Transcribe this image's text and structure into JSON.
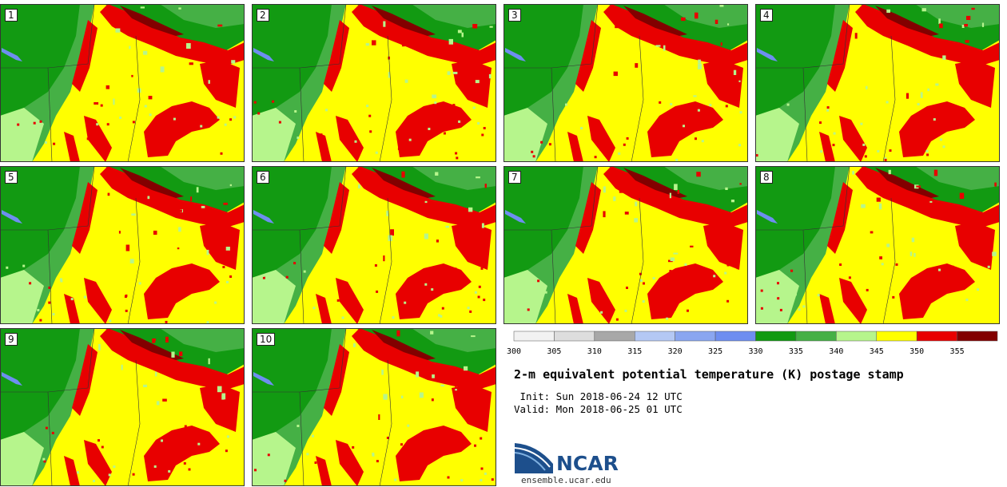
{
  "chart_data": {
    "type": "heatmap",
    "title": "2-m equivalent potential temperature (K) postage stamp",
    "init_line": " Init: Sun 2018-06-24 12 UTC",
    "valid_line": "Valid: Mon 2018-06-25 01 UTC",
    "members": [
      "1",
      "2",
      "3",
      "4",
      "5",
      "6",
      "7",
      "8",
      "9",
      "10"
    ],
    "colorbar": {
      "ticks": [
        "300",
        "305",
        "310",
        "315",
        "320",
        "325",
        "330",
        "335",
        "340",
        "345",
        "350",
        "355"
      ],
      "colors": [
        "#f2f2f2",
        "#dddddd",
        "#a8a8a8",
        "#b4c8f4",
        "#8aa6f0",
        "#6e8ef0",
        "#129a12",
        "#45b045",
        "#b6f58c",
        "#ffff00",
        "#e80000",
        "#820000"
      ]
    }
  },
  "branding": {
    "logo_text": "NCAR",
    "url": "ensemble.ucar.edu"
  }
}
